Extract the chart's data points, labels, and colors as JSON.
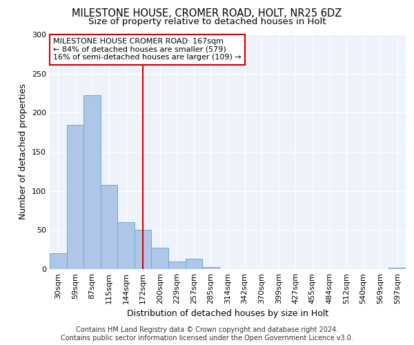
{
  "title": "MILESTONE HOUSE, CROMER ROAD, HOLT, NR25 6DZ",
  "subtitle": "Size of property relative to detached houses in Holt",
  "xlabel": "Distribution of detached houses by size in Holt",
  "ylabel": "Number of detached properties",
  "categories": [
    "30sqm",
    "59sqm",
    "87sqm",
    "115sqm",
    "144sqm",
    "172sqm",
    "200sqm",
    "229sqm",
    "257sqm",
    "285sqm",
    "314sqm",
    "342sqm",
    "370sqm",
    "399sqm",
    "427sqm",
    "455sqm",
    "484sqm",
    "512sqm",
    "540sqm",
    "569sqm",
    "597sqm"
  ],
  "values": [
    20,
    184,
    222,
    108,
    60,
    50,
    27,
    10,
    13,
    3,
    0,
    0,
    0,
    0,
    0,
    0,
    0,
    0,
    0,
    0,
    2
  ],
  "bar_color": "#aec6e8",
  "bar_edgecolor": "#6aaad4",
  "vline_index": 5,
  "vline_color": "#cc0000",
  "annotation_text": "MILESTONE HOUSE CROMER ROAD: 167sqm\n← 84% of detached houses are smaller (579)\n16% of semi-detached houses are larger (109) →",
  "annotation_box_facecolor": "#ffffff",
  "annotation_box_edgecolor": "#cc0000",
  "ylim": [
    0,
    300
  ],
  "yticks": [
    0,
    50,
    100,
    150,
    200,
    250,
    300
  ],
  "background_color": "#eef2fa",
  "title_fontsize": 10.5,
  "subtitle_fontsize": 9.5,
  "axis_label_fontsize": 9,
  "tick_fontsize": 8,
  "footer_text": "Contains HM Land Registry data © Crown copyright and database right 2024.\nContains public sector information licensed under the Open Government Licence v3.0.",
  "footer_fontsize": 7
}
